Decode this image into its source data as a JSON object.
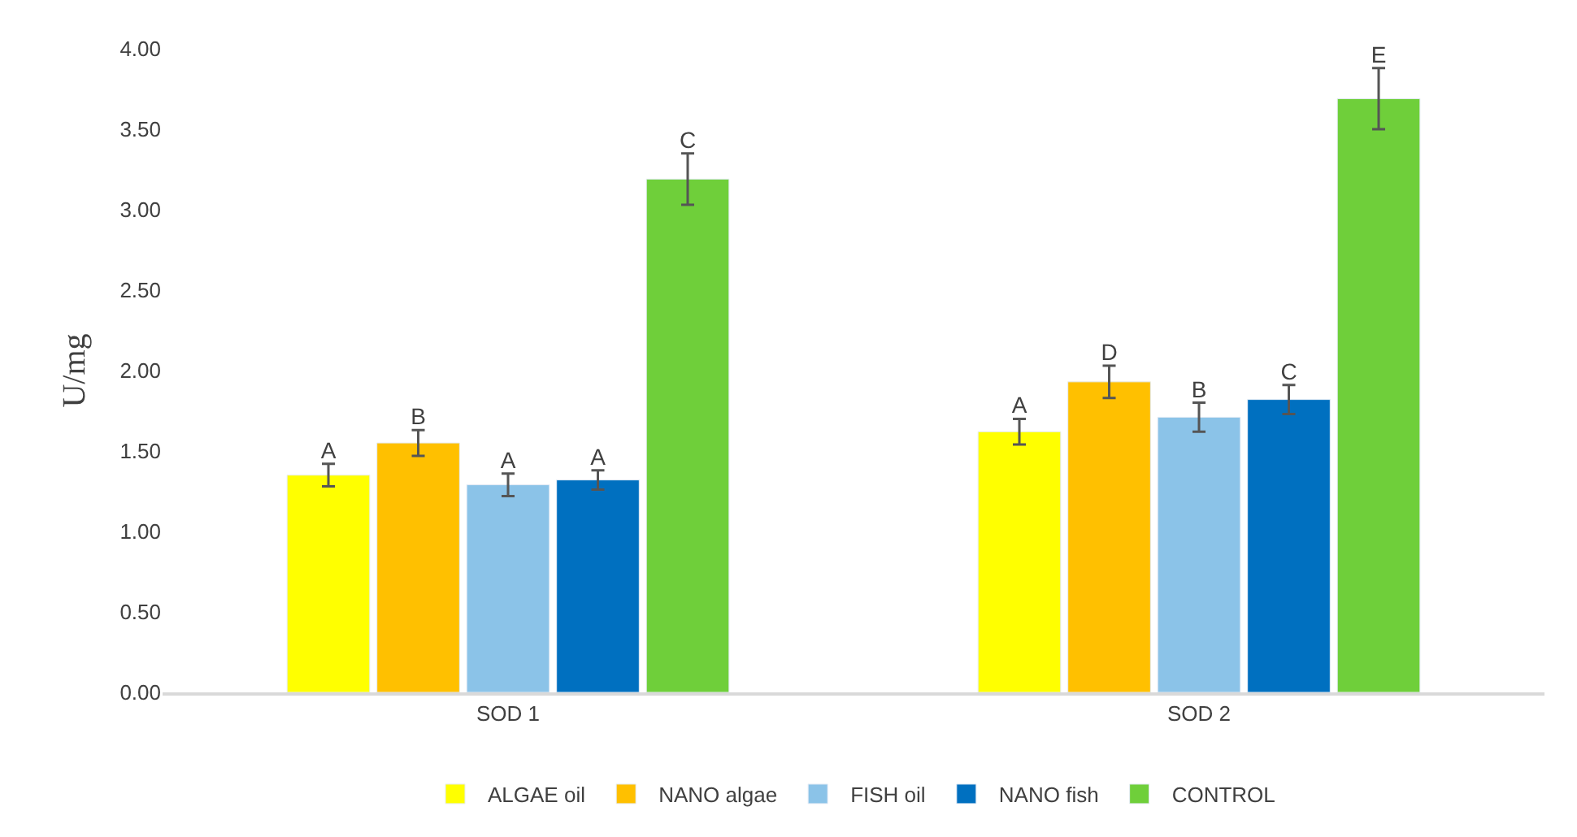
{
  "chart_data": {
    "type": "bar",
    "ylabel": "U/mg",
    "categories": [
      "SOD 1",
      "SOD 2"
    ],
    "series": [
      {
        "name": "ALGAE oil",
        "color": "#ffff00",
        "values": [
          1.35,
          1.62
        ],
        "errors": [
          0.07,
          0.08
        ],
        "value_labels": [
          "A",
          "A"
        ]
      },
      {
        "name": "NANO algae",
        "color": "#ffc000",
        "values": [
          1.55,
          1.93
        ],
        "errors": [
          0.08,
          0.1
        ],
        "value_labels": [
          "B",
          "D"
        ]
      },
      {
        "name": "FISH oil",
        "color": "#8bc3e8",
        "values": [
          1.29,
          1.71
        ],
        "errors": [
          0.07,
          0.09
        ],
        "value_labels": [
          "A",
          "B"
        ]
      },
      {
        "name": "NANO fish",
        "color": "#0070c0",
        "values": [
          1.32,
          1.82
        ],
        "errors": [
          0.06,
          0.09
        ],
        "value_labels": [
          "A",
          "C"
        ]
      },
      {
        "name": "CONTROL",
        "color": "#6fcf3a",
        "values": [
          3.19,
          3.69
        ],
        "errors": [
          0.16,
          0.19
        ],
        "value_labels": [
          "C",
          "E"
        ]
      }
    ],
    "ylim": [
      0,
      4
    ],
    "yticks": [
      {
        "value": 0,
        "label": "0.00"
      },
      {
        "value": 0.5,
        "label": "0.50"
      },
      {
        "value": 1,
        "label": "1.00"
      },
      {
        "value": 1.5,
        "label": "1.50"
      },
      {
        "value": 2,
        "label": "2.00"
      },
      {
        "value": 2.5,
        "label": "2.50"
      },
      {
        "value": 3,
        "label": "3.00"
      },
      {
        "value": 3.5,
        "label": "3.50"
      },
      {
        "value": 4,
        "label": "4.00"
      }
    ],
    "legend": "bottom"
  }
}
